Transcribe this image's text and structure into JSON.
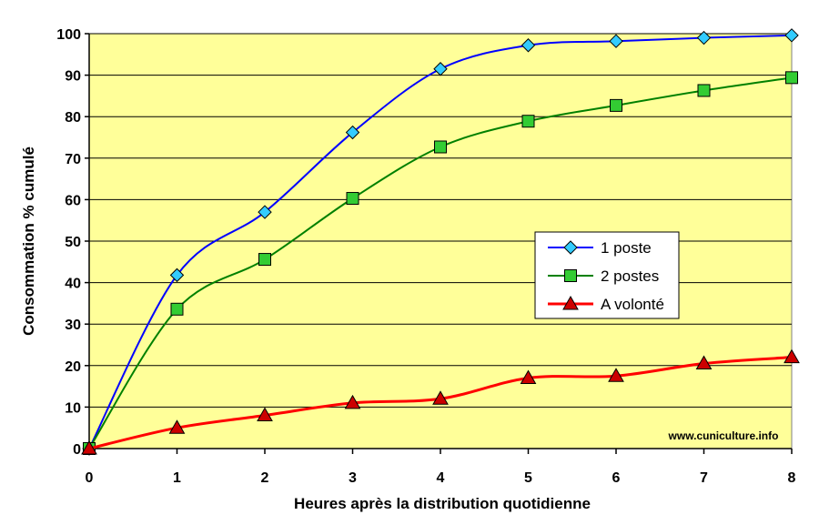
{
  "chart_data": {
    "type": "line",
    "title": "",
    "xlabel": "Heures après la distribution quotidienne",
    "ylabel": "Consommation % cumulé",
    "x": [
      0,
      1,
      2,
      3,
      4,
      5,
      6,
      7,
      8
    ],
    "xlim": [
      0,
      8
    ],
    "ylim": [
      0,
      100
    ],
    "x_ticks": [
      "0",
      "1",
      "2",
      "3",
      "4",
      "5",
      "6",
      "7",
      "8"
    ],
    "y_ticks": [
      "0",
      "10",
      "20",
      "30",
      "40",
      "50",
      "60",
      "70",
      "80",
      "90",
      "100"
    ],
    "grid": "horizontal",
    "legend_position": "right-middle",
    "plot_background": "#ffff99",
    "series": [
      {
        "name": "1 poste",
        "values": [
          0,
          41.8,
          57,
          76.2,
          91.5,
          97.2,
          98.2,
          99,
          99.6
        ],
        "line_color": "#0000ff",
        "marker": "diamond",
        "marker_color": "#33ccff"
      },
      {
        "name": "2 postes",
        "values": [
          0,
          33.6,
          45.6,
          60.3,
          72.7,
          78.9,
          82.7,
          86.3,
          89.4
        ],
        "line_color": "#008000",
        "marker": "square",
        "marker_color": "#33cc33"
      },
      {
        "name": "A volonté",
        "values": [
          0,
          5,
          8,
          11,
          12,
          17,
          17.5,
          20.5,
          22
        ],
        "line_color": "#ff0000",
        "marker": "triangle",
        "marker_color": "#cc0000"
      }
    ],
    "watermark": "www.cuniculture.info"
  }
}
